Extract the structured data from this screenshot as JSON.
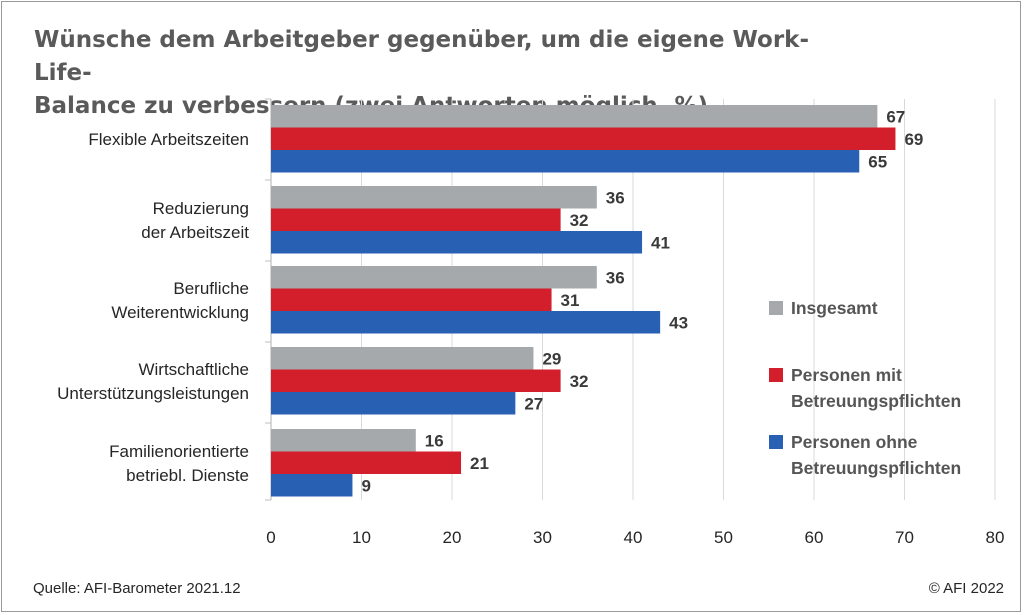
{
  "title_lines": [
    "Wünsche dem Arbeitgeber gegenüber, um die eigene Work-Life-",
    "Balance zu verbessern (zwei Antworten möglich, %)"
  ],
  "source": "Quelle: AFI-Barometer  2021.12",
  "copyright": "© AFI 2022",
  "colors": {
    "Insgesamt": "#a5a9ac",
    "mit": "#d31f2b",
    "ohne": "#2860b4",
    "grid": "#d9d9d9",
    "axis": "#bfbfbf"
  },
  "chart_data": {
    "type": "bar",
    "orientation": "horizontal",
    "title": "Wünsche dem Arbeitgeber gegenüber, um die eigene Work-Life-Balance zu verbessern (zwei Antworten möglich, %)",
    "categories": [
      [
        "Flexible Arbeitszeiten"
      ],
      [
        "Reduzierung",
        "der Arbeitszeit"
      ],
      [
        "Berufliche",
        "Weiterentwicklung"
      ],
      [
        "Wirtschaftliche",
        "Unterstützungsleistungen"
      ],
      [
        "Familienorientierte",
        "betriebl. Dienste"
      ]
    ],
    "series": [
      {
        "name": "Insgesamt",
        "legend_lines": [
          "Insgesamt"
        ],
        "color": "#a5a9ac",
        "values": [
          67,
          36,
          36,
          29,
          16
        ]
      },
      {
        "name": "Personen mit Betreuungspflichten",
        "legend_lines": [
          "Personen mit",
          "Betreuungspflichten"
        ],
        "color": "#d31f2b",
        "values": [
          69,
          32,
          31,
          32,
          21
        ]
      },
      {
        "name": "Personen ohne Betreuungspflichten",
        "legend_lines": [
          "Personen ohne",
          "Betreuungspflichten"
        ],
        "color": "#2860b4",
        "values": [
          65,
          41,
          43,
          27,
          9
        ]
      }
    ],
    "xlim": [
      0,
      80
    ],
    "xticks": [
      0,
      10,
      20,
      30,
      40,
      50,
      60,
      70,
      80
    ],
    "grid": true,
    "legend": "right",
    "data_labels": true
  }
}
